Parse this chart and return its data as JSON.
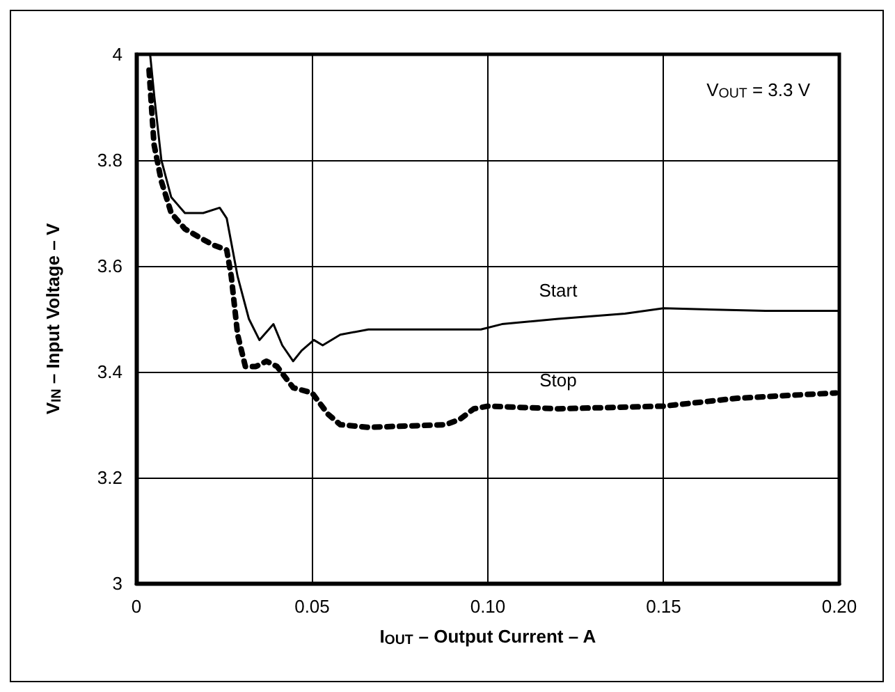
{
  "chart_data": {
    "type": "line",
    "xlabel": "I$_{OUT}$ – Output Current – A",
    "ylabel": "V$_{IN}$ – Input Voltage – V",
    "annotations": [
      "V$_{OUT}$ = 3.3 V"
    ],
    "xlim": [
      0,
      0.2
    ],
    "ylim": [
      3,
      4
    ],
    "xticks": [
      0,
      0.05,
      {
        "value": 0.1,
        "label": "0.10"
      },
      0.15,
      {
        "value": 0.2,
        "label": "0.20"
      }
    ],
    "yticks": [
      3,
      3.2,
      3.4,
      3.6,
      3.8,
      4
    ],
    "grid": true,
    "legend": false,
    "marker": "none",
    "series": [
      {
        "name": "Start",
        "color": "#000000",
        "line_style": "solid",
        "x": [
          0.0039,
          0.0051,
          0.0071,
          0.0099,
          0.0138,
          0.019,
          0.0237,
          0.0257,
          0.0288,
          0.032,
          0.035,
          0.039,
          0.0415,
          0.0446,
          0.047,
          0.0505,
          0.053,
          0.058,
          0.066,
          0.073,
          0.092,
          0.098,
          0.104,
          0.12,
          0.139,
          0.15,
          0.179,
          0.2
        ],
        "values": [
          4.0,
          3.92,
          3.8,
          3.73,
          3.7,
          3.7,
          3.71,
          3.69,
          3.58,
          3.5,
          3.46,
          3.49,
          3.45,
          3.42,
          3.44,
          3.46,
          3.45,
          3.47,
          3.48,
          3.48,
          3.48,
          3.48,
          3.49,
          3.5,
          3.51,
          3.52,
          3.515,
          3.515
        ]
      },
      {
        "name": "Stop",
        "color": "#000000",
        "line_style": "dotted",
        "x": [
          0.0036,
          0.005,
          0.0071,
          0.0099,
          0.0138,
          0.019,
          0.0217,
          0.0257,
          0.027,
          0.0288,
          0.031,
          0.034,
          0.037,
          0.04,
          0.0446,
          0.05,
          0.0545,
          0.058,
          0.066,
          0.088,
          0.092,
          0.096,
          0.1,
          0.12,
          0.15,
          0.171,
          0.199
        ],
        "values": [
          3.97,
          3.83,
          3.76,
          3.7,
          3.67,
          3.65,
          3.64,
          3.63,
          3.58,
          3.47,
          3.41,
          3.41,
          3.42,
          3.41,
          3.37,
          3.36,
          3.32,
          3.3,
          3.295,
          3.3,
          3.31,
          3.33,
          3.335,
          3.33,
          3.335,
          3.35,
          3.36
        ]
      }
    ]
  }
}
